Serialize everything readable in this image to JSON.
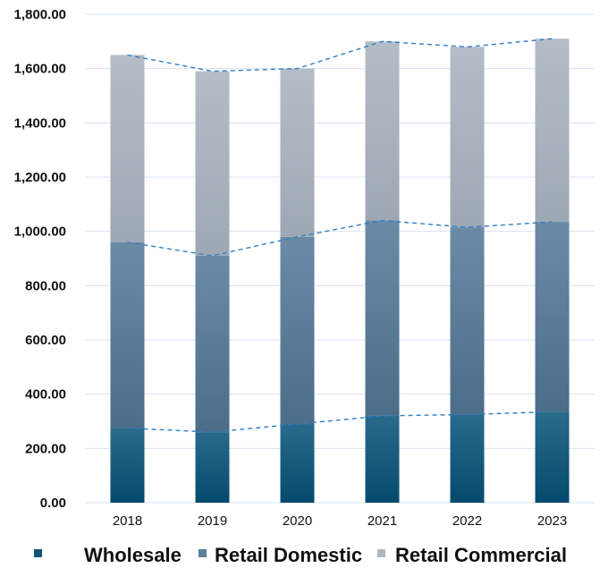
{
  "chart_data": {
    "type": "bar",
    "stacked": true,
    "categories": [
      "2018",
      "2019",
      "2020",
      "2021",
      "2022",
      "2023"
    ],
    "series": [
      {
        "name": "Wholesale",
        "values": [
          275,
          260,
          290,
          320,
          325,
          335
        ],
        "color": "#0d5577"
      },
      {
        "name": "Retail Domestic",
        "values": [
          685,
          650,
          690,
          720,
          690,
          700
        ],
        "color": "#5e7d98"
      },
      {
        "name": "Retail Commercial",
        "values": [
          690,
          680,
          620,
          660,
          665,
          675
        ],
        "color": "#b0b8c2"
      }
    ],
    "cumulative_trend_lines": {
      "style": "dashed",
      "color": "#2f7ec4"
    },
    "ylim": [
      0,
      1800
    ],
    "yticks": [
      "0.00",
      "200.00",
      "400.00",
      "600.00",
      "800.00",
      "1,000.00",
      "1,200.00",
      "1,400.00",
      "1,600.00",
      "1,800.00"
    ],
    "grid": true,
    "legend_position": "bottom",
    "title": "",
    "xlabel": "",
    "ylabel": ""
  }
}
